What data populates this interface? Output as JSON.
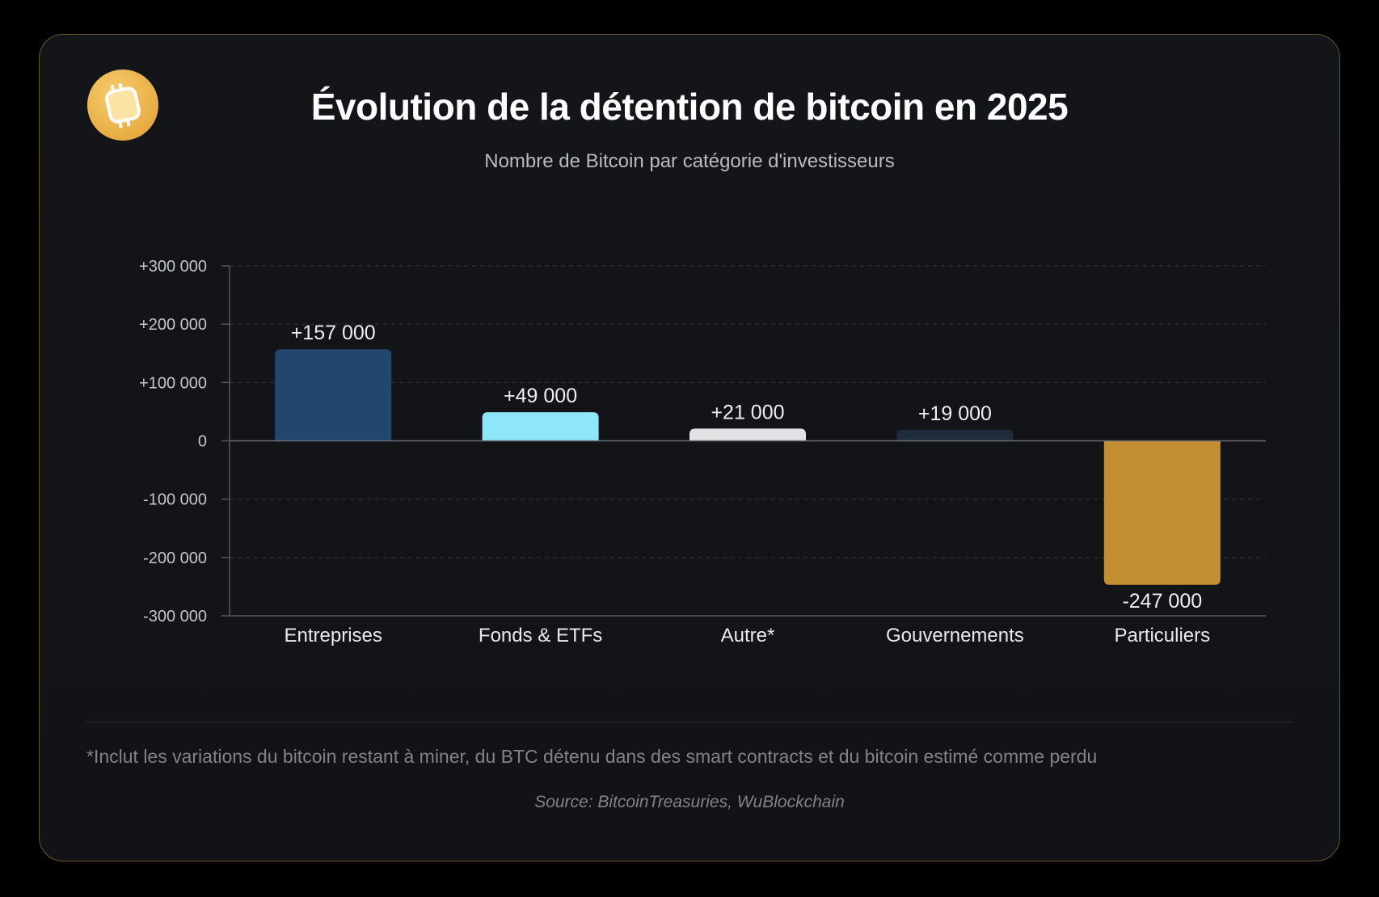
{
  "header": {
    "title": "Évolution de la détention de bitcoin en 2025",
    "subtitle": "Nombre de Bitcoin par catégorie d'investisseurs",
    "logo_icon": "bitcoin-logo-icon"
  },
  "footer": {
    "footnote": "*Inclut les variations du bitcoin restant à miner, du BTC détenu dans des smart contracts et du bitcoin estimé comme perdu",
    "source": "Source: BitcoinTreasuries, WuBlockchain"
  },
  "chart_data": {
    "type": "bar",
    "title": "Évolution de la détention de bitcoin en 2025",
    "subtitle": "Nombre de Bitcoin par catégorie d'investisseurs",
    "xlabel": "",
    "ylabel": "",
    "ylim": [
      -300000,
      300000
    ],
    "yticks": [
      300000,
      200000,
      100000,
      0,
      -100000,
      -200000,
      -300000
    ],
    "ytick_labels": [
      "+300 000",
      "+200 000",
      "+100 000",
      "0",
      "-100 000",
      "-200 000",
      "-300 000"
    ],
    "grid": true,
    "categories": [
      "Entreprises",
      "Fonds & ETFs",
      "Autre*",
      "Gouvernements",
      "Particuliers"
    ],
    "values": [
      157000,
      49000,
      21000,
      19000,
      -247000
    ],
    "value_labels": [
      "+157 000",
      "+49 000",
      "+21 000",
      "+19 000",
      "-247 000"
    ],
    "colors": [
      "#22476e",
      "#8ee6f9",
      "#e2e2e4",
      "#1f2a3b",
      "#c48f33"
    ]
  }
}
